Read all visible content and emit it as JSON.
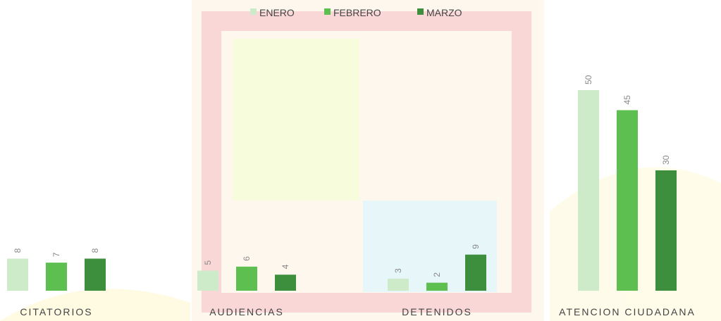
{
  "chart_data": {
    "type": "bar",
    "categories": [
      "CITATORIOS",
      "AUDIENCIAS",
      "DETENIDOS",
      "ATENCION CIUDADANA"
    ],
    "series": [
      {
        "name": "ENERO",
        "color": "#cdebc8",
        "values": [
          8,
          5,
          3,
          50
        ]
      },
      {
        "name": "FEBRERO",
        "color": "#5cbf4f",
        "values": [
          7,
          6,
          2,
          45
        ]
      },
      {
        "name": "MARZO",
        "color": "#3d8f3d",
        "values": [
          8,
          4,
          9,
          30
        ]
      }
    ],
    "legend": "top"
  }
}
